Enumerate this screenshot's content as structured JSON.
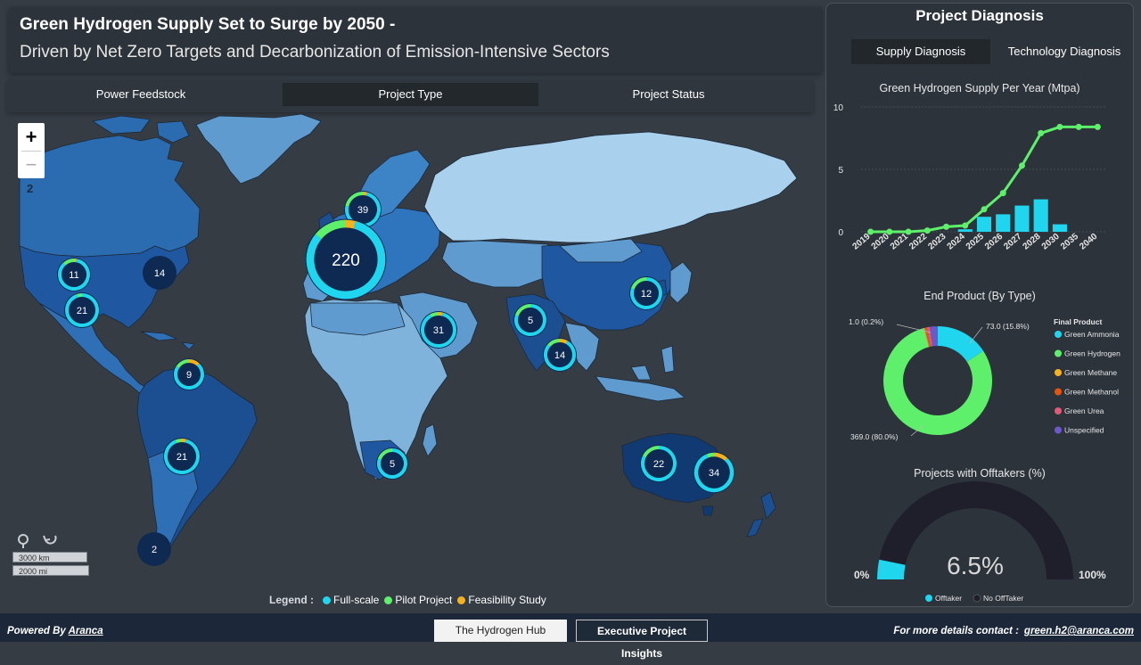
{
  "header": {
    "title_line1": "Green Hydrogen Supply Set to Surge by 2050 -",
    "title_line2": "Driven by Net Zero Targets and Decarbonization of Emission-Intensive Sectors"
  },
  "tabs": [
    {
      "label": "Power Feedstock",
      "active": false
    },
    {
      "label": "Project Type",
      "active": true
    },
    {
      "label": "Project Status",
      "active": false
    }
  ],
  "map": {
    "zoom_in": "+",
    "zoom_out": "−",
    "zoom_level": "2",
    "scale_km": "3000 km",
    "scale_mi": "2000 mi",
    "clusters": [
      {
        "label": "11",
        "region": "usa-west",
        "fullscale": 0.85,
        "pilot": 0.12,
        "feasibility": 0.03
      },
      {
        "label": "14",
        "region": "usa-east",
        "fullscale": 1.0,
        "pilot": 0,
        "feasibility": 0
      },
      {
        "label": "21",
        "region": "usa-south",
        "fullscale": 0.95,
        "pilot": 0.05,
        "feasibility": 0
      },
      {
        "label": "9",
        "region": "caribbean",
        "fullscale": 0.72,
        "pilot": 0.16,
        "feasibility": 0.12
      },
      {
        "label": "21",
        "region": "brazil",
        "fullscale": 0.9,
        "pilot": 0.06,
        "feasibility": 0.04
      },
      {
        "label": "2",
        "region": "argentina",
        "fullscale": 1.0,
        "pilot": 0,
        "feasibility": 0
      },
      {
        "label": "39",
        "region": "scandinavia",
        "fullscale": 0.74,
        "pilot": 0.22,
        "feasibility": 0.04
      },
      {
        "label": "220",
        "region": "europe",
        "fullscale": 0.82,
        "pilot": 0.14,
        "feasibility": 0.04
      },
      {
        "label": "31",
        "region": "middle-east",
        "fullscale": 0.88,
        "pilot": 0.08,
        "feasibility": 0.04
      },
      {
        "label": "5",
        "region": "south-africa",
        "fullscale": 0.8,
        "pilot": 0.2,
        "feasibility": 0
      },
      {
        "label": "5",
        "region": "central-asia",
        "fullscale": 0.8,
        "pilot": 0.2,
        "feasibility": 0
      },
      {
        "label": "14",
        "region": "india",
        "fullscale": 0.78,
        "pilot": 0.14,
        "feasibility": 0.08
      },
      {
        "label": "12",
        "region": "china",
        "fullscale": 0.8,
        "pilot": 0.2,
        "feasibility": 0
      },
      {
        "label": "22",
        "region": "australia-west",
        "fullscale": 0.82,
        "pilot": 0.18,
        "feasibility": 0
      },
      {
        "label": "34",
        "region": "australia-east",
        "fullscale": 0.82,
        "pilot": 0.06,
        "feasibility": 0.12
      }
    ]
  },
  "legend": {
    "title": "Legend :",
    "items": [
      {
        "label": "Full-scale",
        "color": "#1fd6ee"
      },
      {
        "label": "Pilot Project",
        "color": "#5ef06a"
      },
      {
        "label": "Feasibility Study",
        "color": "#f5b21d"
      }
    ]
  },
  "panel": {
    "title": "Project Diagnosis",
    "tabs": [
      {
        "label": "Supply Diagnosis",
        "active": true
      },
      {
        "label": "Technology Diagnosis",
        "active": false
      }
    ],
    "supply_title": "Green Hydrogen Supply Per Year (Mtpa)",
    "endproduct_title": "End Product (By Type)",
    "offtaker_title": "Projects with Offtakers (%)"
  },
  "chart_data": [
    {
      "type": "bar",
      "title": "Green Hydrogen Supply Per Year (Mtpa)",
      "categories": [
        "2019",
        "2020",
        "2021",
        "2022",
        "2023",
        "2024",
        "2025",
        "2026",
        "2027",
        "2028",
        "2030",
        "2035",
        "2040"
      ],
      "series": [
        {
          "type": "bar",
          "values": [
            0,
            0,
            0,
            0,
            0,
            0.2,
            1.2,
            1.4,
            2.1,
            2.6,
            0.6,
            0,
            0
          ],
          "color": "#1fd6ee"
        },
        {
          "type": "line",
          "values": [
            0.0,
            0.0,
            0.0,
            0.1,
            0.4,
            0.5,
            1.8,
            3.1,
            5.3,
            7.9,
            8.4,
            8.4,
            8.4
          ],
          "color": "#5ef06a"
        }
      ],
      "ylim": [
        0,
        10
      ],
      "yticks": [
        "0",
        "5",
        "10"
      ],
      "grid": true
    },
    {
      "type": "pie",
      "title": "End Product (By Type)",
      "legend_title": "Final Product",
      "legend_position": "right",
      "slices": [
        {
          "label": "Green Ammonia",
          "value": 73.0,
          "display": "73.0 (15.8%)",
          "color": "#1fd6ee"
        },
        {
          "label": "Green Hydrogen",
          "value": 369.0,
          "display": "369.0 (80.0%)",
          "color": "#5ef06a"
        },
        {
          "label": "Green Methane",
          "value": 1.0,
          "display": "1.0 (0.2%)",
          "color": "#f5b21d"
        },
        {
          "label": "Green Methanol",
          "value": 3.0,
          "display": "",
          "color": "#e8540e"
        },
        {
          "label": "Green Urea",
          "value": 4.0,
          "display": "",
          "color": "#e05a77"
        },
        {
          "label": "Unspecified",
          "value": 11.0,
          "display": "",
          "color": "#6e57c9"
        }
      ]
    },
    {
      "type": "gauge",
      "title": "Projects with Offtakers (%)",
      "value": 6.5,
      "value_label": "6.5%",
      "min_label": "0%",
      "max_label": "100%",
      "legend": [
        {
          "label": "Offtaker",
          "color": "#1fd6ee"
        },
        {
          "label": "No OffTaker",
          "color": "#1e1f2a"
        }
      ]
    }
  ],
  "footer": {
    "powered_prefix": "Powered By",
    "powered_link": "Aranca",
    "btn_hub": "The Hydrogen Hub",
    "btn_insights": "Executive Project Insights",
    "contact_label": "For more details contact :",
    "contact_email": "green.h2@aranca.com"
  }
}
